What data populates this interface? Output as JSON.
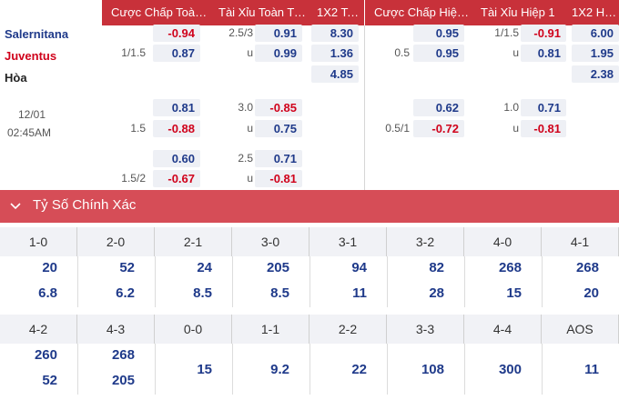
{
  "headers": {
    "h1": "Cược Chấp Toàn ...",
    "h2": "Tài Xỉu Toàn Trận",
    "h3": "1X2 Toà...",
    "h4": "Cược Chấp Hiệp 1",
    "h5": "Tài Xỉu Hiệp 1",
    "h6": "1X2 Hiệ..."
  },
  "teams": {
    "home": "Salernitana",
    "away": "Juventus",
    "draw": "Hòa"
  },
  "match_time": {
    "date": "12/01",
    "time": "02:45AM"
  },
  "full_time": {
    "rows": [
      {
        "hcap": "",
        "hcap_val": "-0.94",
        "ou": "2.5/3",
        "ou_val": "0.91",
        "x12": "8.30"
      },
      {
        "hcap": "1/1.5",
        "hcap_val": "0.87",
        "ou": "u",
        "ou_val": "0.99",
        "x12": "1.36"
      },
      {
        "x12": "4.85"
      },
      {
        "hcap": "",
        "hcap_val": "0.81",
        "ou": "3.0",
        "ou_val": "-0.85"
      },
      {
        "hcap": "1.5",
        "hcap_val": "-0.88",
        "ou": "u",
        "ou_val": "0.75"
      },
      {
        "hcap": "",
        "hcap_val": "0.60",
        "ou": "2.5",
        "ou_val": "0.71"
      },
      {
        "hcap": "1.5/2",
        "hcap_val": "-0.67",
        "ou": "u",
        "ou_val": "-0.81"
      }
    ]
  },
  "first_half": {
    "rows": [
      {
        "hcap": "",
        "hcap_val": "0.95",
        "ou": "1/1.5",
        "ou_val": "-0.91",
        "x12": "6.00"
      },
      {
        "hcap": "0.5",
        "hcap_val": "0.95",
        "ou": "u",
        "ou_val": "0.81",
        "x12": "1.95"
      },
      {
        "x12": "2.38"
      },
      {
        "hcap": "",
        "hcap_val": "0.62",
        "ou": "1.0",
        "ou_val": "0.71"
      },
      {
        "hcap": "0.5/1",
        "hcap_val": "-0.72",
        "ou": "u",
        "ou_val": "-0.81"
      }
    ]
  },
  "correct_score": {
    "title": "Tỷ Số Chính Xác",
    "row1": [
      {
        "score": "1-0",
        "a": "20",
        "b": "6.8"
      },
      {
        "score": "2-0",
        "a": "52",
        "b": "6.2"
      },
      {
        "score": "2-1",
        "a": "24",
        "b": "8.5"
      },
      {
        "score": "3-0",
        "a": "205",
        "b": "8.5"
      },
      {
        "score": "3-1",
        "a": "94",
        "b": "11"
      },
      {
        "score": "3-2",
        "a": "82",
        "b": "28"
      },
      {
        "score": "4-0",
        "a": "268",
        "b": "15"
      },
      {
        "score": "4-1",
        "a": "268",
        "b": "20"
      }
    ],
    "row2": [
      {
        "score": "4-2",
        "a": "260",
        "b": "52"
      },
      {
        "score": "4-3",
        "a": "268",
        "b": "205"
      },
      {
        "score": "0-0",
        "a": "15"
      },
      {
        "score": "1-1",
        "a": "9.2"
      },
      {
        "score": "2-2",
        "a": "22"
      },
      {
        "score": "3-3",
        "a": "108"
      },
      {
        "score": "4-4",
        "a": "300"
      },
      {
        "score": "AOS",
        "a": "11"
      }
    ]
  },
  "colors": {
    "header_bg": "#c8313a",
    "section_bar": "#d64d57",
    "negative": "#d0021b",
    "positive": "#1f3a8a",
    "away_team": "#d0021b",
    "home_team": "#1f3a8a"
  }
}
